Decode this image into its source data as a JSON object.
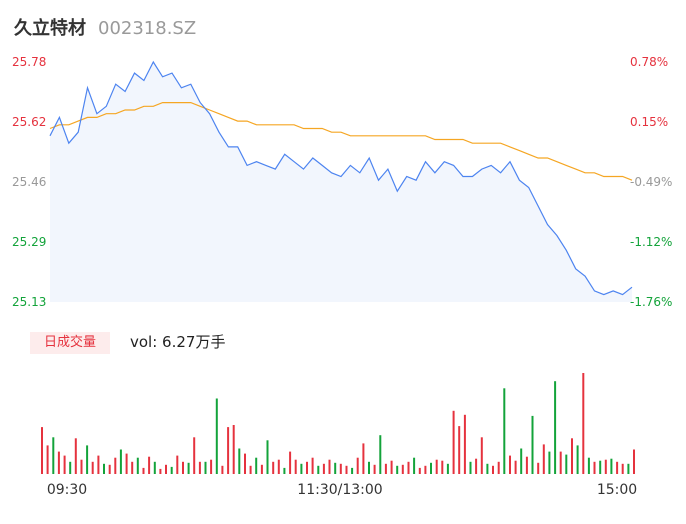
{
  "header": {
    "name": "久立特材",
    "code": "002318.SZ"
  },
  "volume": {
    "badge": "日成交量",
    "label": "vol: 6.27万手"
  },
  "colors": {
    "up": "#e5323e",
    "down": "#13a33a",
    "price_line": "#4d84f0",
    "avg_line": "#f5a623",
    "neutral": "#999999"
  },
  "chart_data": [
    {
      "type": "line",
      "title": "",
      "y_left_ticks": [
        "25.78",
        "25.62",
        "25.46",
        "25.29",
        "25.13"
      ],
      "y_right_ticks": [
        "0.78%",
        "0.15%",
        "-0.49%",
        "-1.12%",
        "-1.76%"
      ],
      "x_ticks": [
        "09:30",
        "11:30/13:00",
        "15:00"
      ],
      "ylim": [
        25.13,
        25.78
      ],
      "series": [
        {
          "key": "price",
          "values": [
            25.58,
            25.63,
            25.56,
            25.59,
            25.71,
            25.64,
            25.66,
            25.72,
            25.7,
            25.75,
            25.73,
            25.78,
            25.74,
            25.75,
            25.71,
            25.72,
            25.67,
            25.64,
            25.59,
            25.55,
            25.55,
            25.5,
            25.51,
            25.5,
            25.49,
            25.53,
            25.51,
            25.49,
            25.52,
            25.5,
            25.48,
            25.47,
            25.5,
            25.48,
            25.52,
            25.46,
            25.49,
            25.43,
            25.47,
            25.46,
            25.51,
            25.48,
            25.51,
            25.5,
            25.47,
            25.47,
            25.49,
            25.5,
            25.48,
            25.51,
            25.46,
            25.44,
            25.39,
            25.34,
            25.31,
            25.27,
            25.22,
            25.2,
            25.16,
            25.15,
            25.16,
            25.15,
            25.17
          ]
        },
        {
          "key": "average",
          "values": [
            25.6,
            25.61,
            25.61,
            25.62,
            25.63,
            25.63,
            25.64,
            25.64,
            25.65,
            25.65,
            25.66,
            25.66,
            25.67,
            25.67,
            25.67,
            25.67,
            25.66,
            25.65,
            25.64,
            25.63,
            25.62,
            25.62,
            25.61,
            25.61,
            25.61,
            25.61,
            25.61,
            25.6,
            25.6,
            25.6,
            25.59,
            25.59,
            25.58,
            25.58,
            25.58,
            25.58,
            25.58,
            25.58,
            25.58,
            25.58,
            25.58,
            25.57,
            25.57,
            25.57,
            25.57,
            25.56,
            25.56,
            25.56,
            25.56,
            25.55,
            25.54,
            25.53,
            25.52,
            25.52,
            25.51,
            25.5,
            25.49,
            25.48,
            25.48,
            25.47,
            25.47,
            25.47,
            25.46
          ]
        }
      ]
    },
    {
      "type": "bar",
      "title": "",
      "ylim": [
        0,
        100
      ],
      "values": [
        46,
        28,
        36,
        22,
        18,
        12,
        35,
        14,
        28,
        12,
        18,
        10,
        9,
        16,
        24,
        20,
        12,
        16,
        6,
        17,
        12,
        5,
        9,
        7,
        18,
        12,
        11,
        36,
        12,
        12,
        14,
        74,
        8,
        46,
        48,
        25,
        20,
        8,
        16,
        9,
        33,
        12,
        14,
        6,
        22,
        14,
        10,
        12,
        16,
        8,
        10,
        14,
        11,
        10,
        8,
        6,
        16,
        30,
        12,
        9,
        38,
        10,
        13,
        8,
        9,
        12,
        16,
        6,
        8,
        11,
        14,
        13,
        10,
        62,
        47,
        58,
        12,
        15,
        36,
        10,
        8,
        12,
        84,
        18,
        13,
        25,
        17,
        57,
        11,
        29,
        22,
        91,
        22,
        19,
        35,
        28,
        99,
        16,
        12,
        13,
        14,
        15,
        12,
        10,
        10,
        24
      ],
      "directions": [
        "u",
        "u",
        "d",
        "u",
        "u",
        "d",
        "u",
        "u",
        "d",
        "u",
        "u",
        "d",
        "u",
        "u",
        "d",
        "u",
        "u",
        "d",
        "u",
        "u",
        "d",
        "u",
        "u",
        "d",
        "u",
        "u",
        "d",
        "u",
        "u",
        "d",
        "u",
        "d",
        "u",
        "u",
        "u",
        "d",
        "u",
        "u",
        "d",
        "u",
        "d",
        "u",
        "u",
        "d",
        "u",
        "u",
        "d",
        "u",
        "u",
        "d",
        "u",
        "u",
        "d",
        "u",
        "u",
        "d",
        "u",
        "u",
        "d",
        "u",
        "d",
        "u",
        "u",
        "d",
        "u",
        "u",
        "d",
        "u",
        "u",
        "d",
        "u",
        "u",
        "d",
        "u",
        "u",
        "u",
        "d",
        "u",
        "u",
        "d",
        "u",
        "u",
        "d",
        "u",
        "u",
        "d",
        "u",
        "d",
        "u",
        "u",
        "d",
        "d",
        "u",
        "d",
        "u",
        "d",
        "u",
        "d",
        "u",
        "d",
        "u",
        "d",
        "u",
        "u",
        "d",
        "u"
      ]
    }
  ]
}
